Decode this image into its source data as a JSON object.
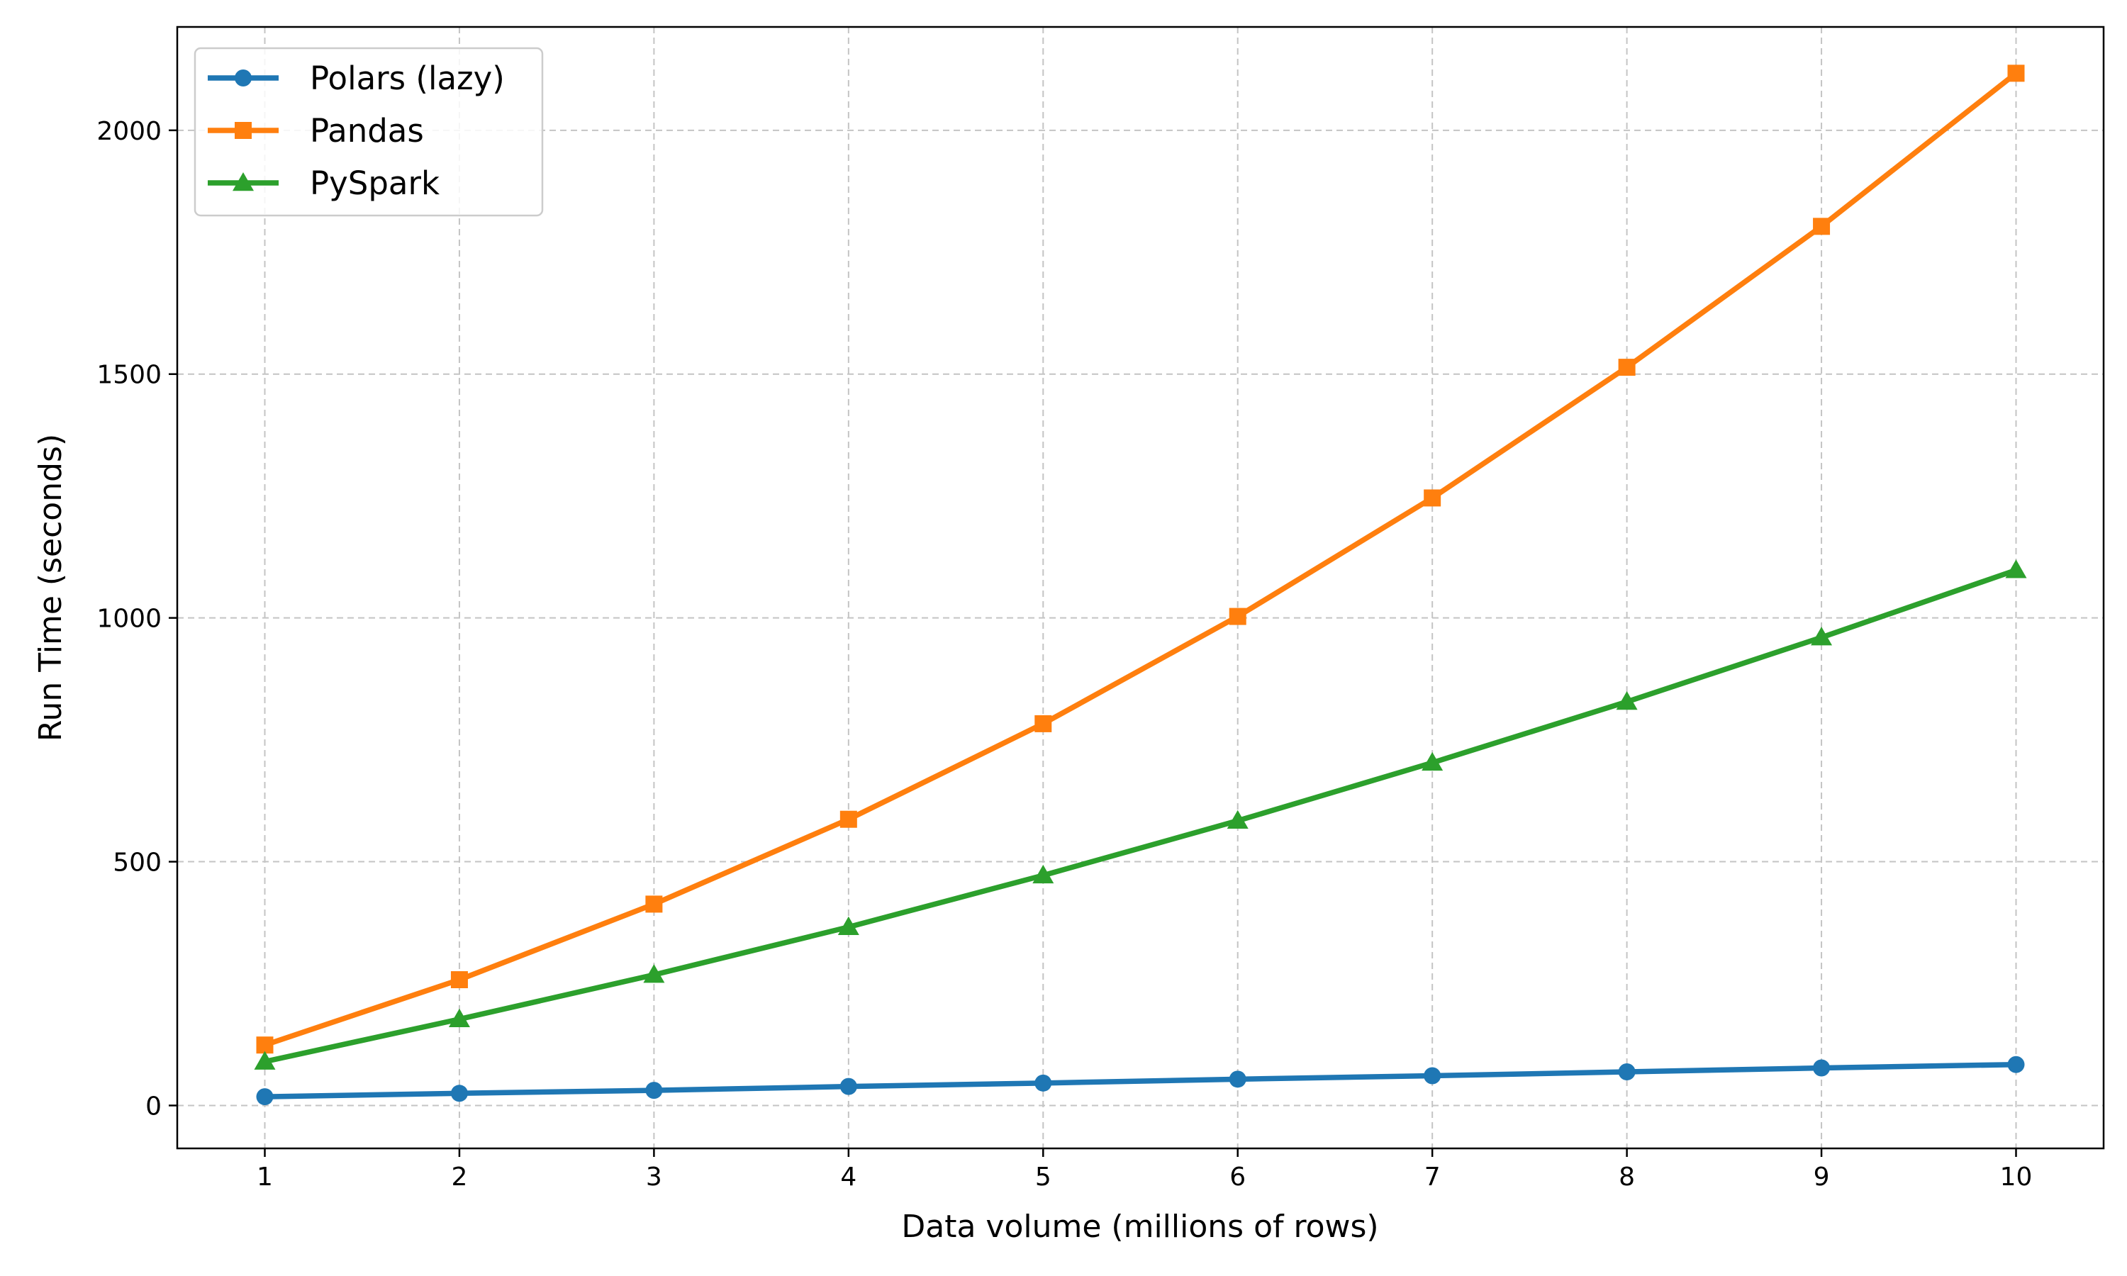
{
  "chart_data": {
    "type": "line",
    "title": "",
    "xlabel": "Data volume (millions of rows)",
    "ylabel": "Run Time (seconds)",
    "x": [
      1,
      2,
      3,
      4,
      5,
      6,
      7,
      8,
      9,
      10
    ],
    "xlim": [
      0.55,
      10.45
    ],
    "ylim": [
      -88,
      2212
    ],
    "xticks": [
      1,
      2,
      3,
      4,
      5,
      6,
      7,
      8,
      9,
      10
    ],
    "yticks": [
      0,
      500,
      1000,
      1500,
      2000
    ],
    "grid": true,
    "grid_style": "dashed",
    "legend_position": "top-left",
    "series": [
      {
        "name": "Polars (lazy)",
        "color": "#1f77b4",
        "marker": "circle",
        "values": [
          18,
          25,
          31,
          39,
          46,
          54,
          61,
          69,
          77,
          84
        ]
      },
      {
        "name": "Pandas",
        "color": "#ff7f0e",
        "marker": "square",
        "values": [
          124,
          258,
          413,
          587,
          783,
          1003,
          1246,
          1514,
          1803,
          2117
        ]
      },
      {
        "name": "PySpark",
        "color": "#2ca02c",
        "marker": "triangle",
        "values": [
          90,
          177,
          268,
          366,
          472,
          584,
          703,
          828,
          960,
          1098
        ]
      }
    ]
  }
}
